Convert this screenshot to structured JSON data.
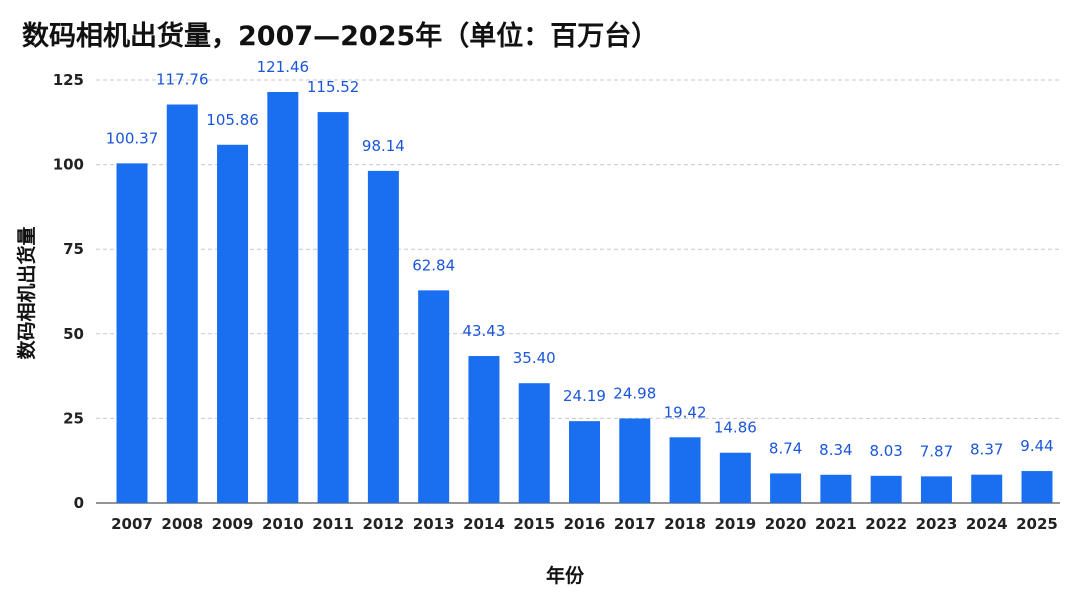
{
  "title": "数码相机出货量，2007—2025年（单位：百万台）",
  "chart_data": {
    "type": "bar",
    "title": "数码相机出货量，2007—2025年（单位：百万台）",
    "xlabel": "年份",
    "ylabel": "数码相机出货量",
    "categories": [
      "2007",
      "2008",
      "2009",
      "2010",
      "2011",
      "2012",
      "2013",
      "2014",
      "2015",
      "2016",
      "2017",
      "2018",
      "2019",
      "2020",
      "2021",
      "2022",
      "2023",
      "2024",
      "2025"
    ],
    "values": [
      100.37,
      117.76,
      105.86,
      121.46,
      115.52,
      98.14,
      62.84,
      43.43,
      35.4,
      24.19,
      24.98,
      19.42,
      14.86,
      8.74,
      8.34,
      8.03,
      7.87,
      8.37,
      9.44
    ],
    "value_labels": [
      "100.37",
      "117.76",
      "105.86",
      "121.46",
      "115.52",
      "98.14",
      "62.84",
      "43.43",
      "35.40",
      "24.19",
      "24.98",
      "19.42",
      "14.86",
      "8.74",
      "8.34",
      "8.03",
      "7.87",
      "8.37",
      "9.44"
    ],
    "ylim": [
      0,
      125
    ],
    "yticks": [
      0,
      25,
      50,
      75,
      100,
      125
    ],
    "grid": true,
    "bar_color": "#1a6ff0",
    "label_color": "#1a56db"
  }
}
